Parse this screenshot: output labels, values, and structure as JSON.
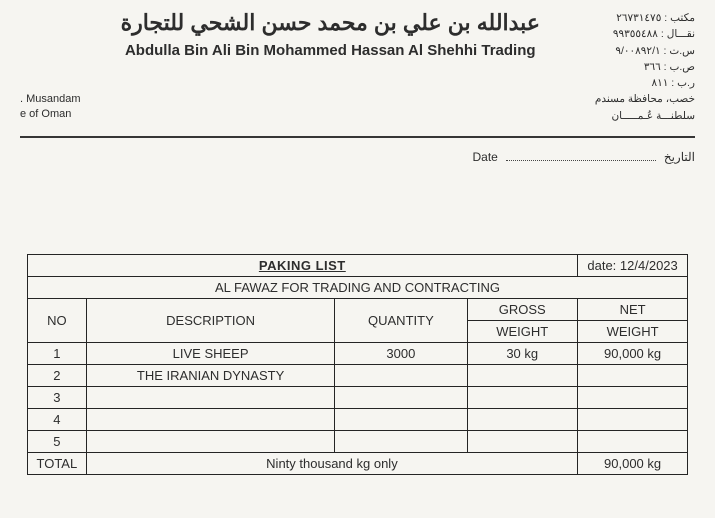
{
  "letterhead": {
    "arabic": "عبدالله بن علي بن محمد حسن الشحي للتجارة",
    "english": "Abdulla Bin Ali Bin Mohammed Hassan Al Shehhi Trading",
    "left_lines": [
      ". Musandam",
      "e of Oman"
    ],
    "right_lines": [
      "مكتب : ٢٦٧٣١٤٧٥",
      "نقـــال : ٩٩٣٥٥٤٨٨",
      "س.ت : ٩/٠٠٨٩٢/١",
      "ص.ب : ٣٦٦",
      "ر.ب : ٨١١",
      "خصب، محافظة مسندم",
      "سلطنـــة عُـمـــــان"
    ]
  },
  "dateline": {
    "label_en": "Date",
    "label_ar": "التاريخ"
  },
  "packing": {
    "title": "PAKING LIST",
    "date_label": "date:",
    "date_value": "12/4/2023",
    "recipient": "AL FAWAZ FOR TRADING AND CONTRACTING",
    "headers": {
      "no": "NO",
      "description": "DESCRIPTION",
      "quantity": "QUANTITY",
      "gross": "GROSS",
      "net": "NET",
      "weight": "WEIGHT"
    },
    "rows": [
      {
        "no": "1",
        "desc": "LIVE  SHEEP",
        "qty": "3000",
        "gross": "30 kg",
        "net": "90,000 kg"
      },
      {
        "no": "2",
        "desc": "THE IRANIAN DYNASTY",
        "qty": "",
        "gross": "",
        "net": ""
      },
      {
        "no": "3",
        "desc": "",
        "qty": "",
        "gross": "",
        "net": ""
      },
      {
        "no": "4",
        "desc": "",
        "qty": "",
        "gross": "",
        "net": ""
      },
      {
        "no": "5",
        "desc": "",
        "qty": "",
        "gross": "",
        "net": ""
      }
    ],
    "total_label": "TOTAL",
    "total_words": "Ninty thousand kg only",
    "total_net": "90,000 kg"
  },
  "colors": {
    "paper": "#f7f6f2",
    "ink": "#2a2a2a",
    "border": "#222222"
  }
}
